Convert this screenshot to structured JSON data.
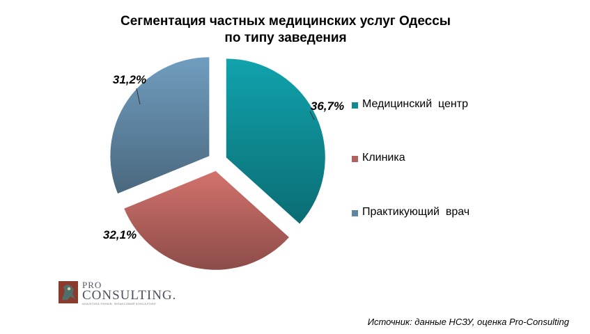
{
  "chart_data": {
    "type": "pie",
    "title": "Сегментация частных медицинских услуг Одессы по типу заведения",
    "title_lines": [
      "Сегментация частных медицинских услуг Одессы",
      "по типу заведения"
    ],
    "slices": [
      {
        "name": "Медицинский  центр",
        "value": 36.7,
        "label": "36,7%",
        "color": "#0e8a93"
      },
      {
        "name": "Клиника",
        "value": 32.1,
        "label": "32,1%",
        "color": "#b3615c"
      },
      {
        "name": "Практикующий  врач",
        "value": 31.2,
        "label": "31,2%",
        "color": "#5f85a2"
      }
    ],
    "legend_position": "right",
    "exploded": true
  },
  "logo": {
    "pro": "PRO",
    "name": "CONSULTING.",
    "tagline": "АНАЛІТИКА РИНКІВ. ФІНАНСОВИЙ КОНСАЛТИНГ"
  },
  "source": "Источник: данные НСЗУ, оценка  Pro-Consulting"
}
